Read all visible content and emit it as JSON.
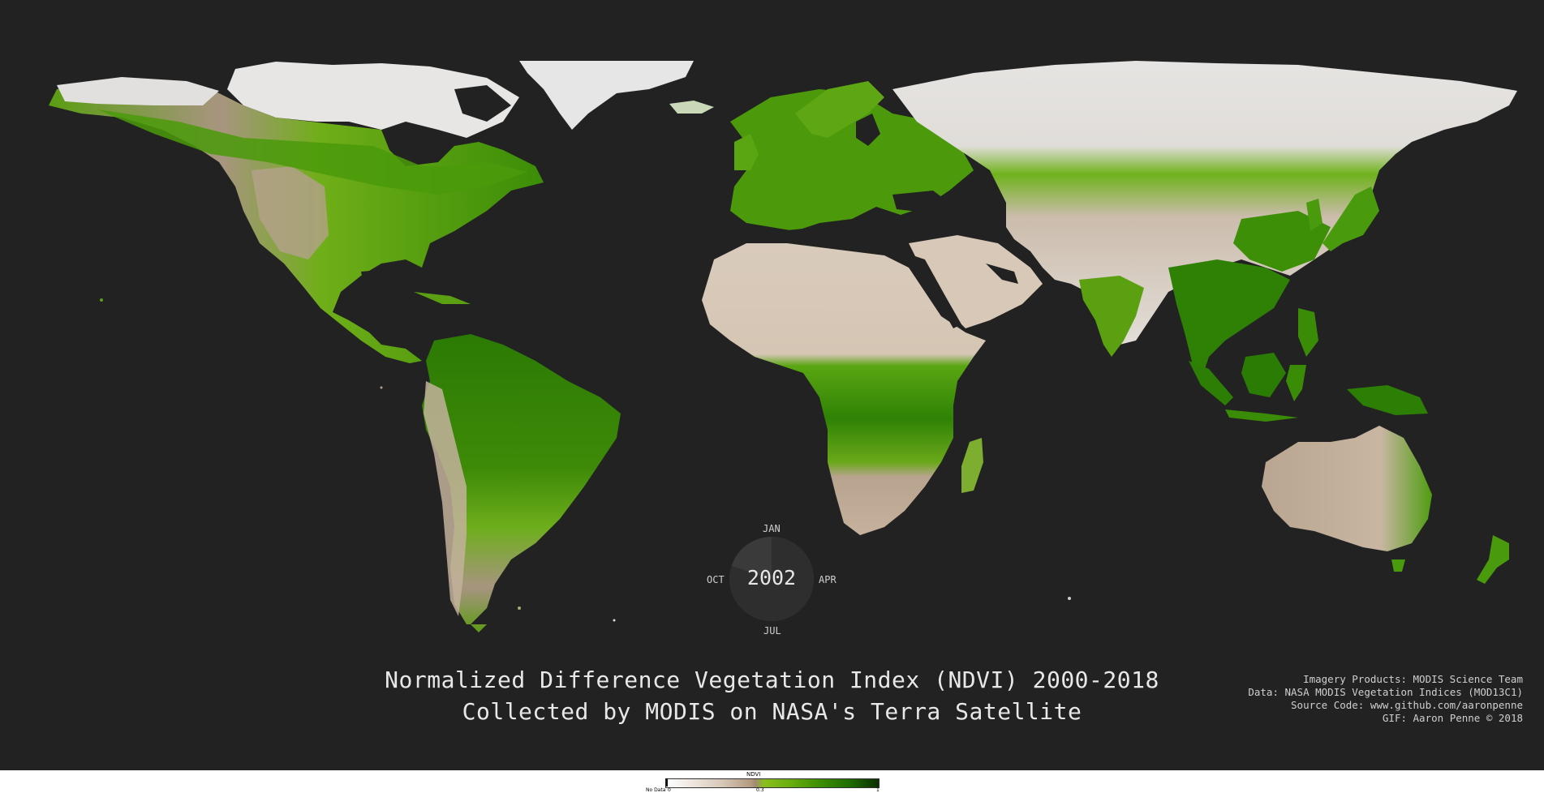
{
  "title": {
    "line1": "Normalized Difference Vegetation Index (NDVI) 2000-2018",
    "line2": "Collected by MODIS on NASA's Terra Satellite"
  },
  "credits": [
    "Imagery Products: MODIS Science Team",
    "Data: NASA MODIS Vegetation Indices (MOD13C1)",
    "Source Code: www.github.com/aaronpenne",
    "GIF: Aaron Penne © 2018"
  ],
  "clock": {
    "year": "2002",
    "months": {
      "top": "JAN",
      "right": "APR",
      "bottom": "JUL",
      "left": "OCT"
    },
    "progress": 0.8
  },
  "legend": {
    "title": "NDVI",
    "no_data_label": "No Data",
    "ticks": [
      "0",
      "0.3",
      "1"
    ]
  },
  "colors": {
    "background": "#222222",
    "ice": "#e6e6e6",
    "desert": "#d6c6b6",
    "arid": "#b7a08a",
    "vegetation_light": "#7cbf1a",
    "vegetation": "#4f9a0a",
    "vegetation_dense": "#2a7a03"
  }
}
